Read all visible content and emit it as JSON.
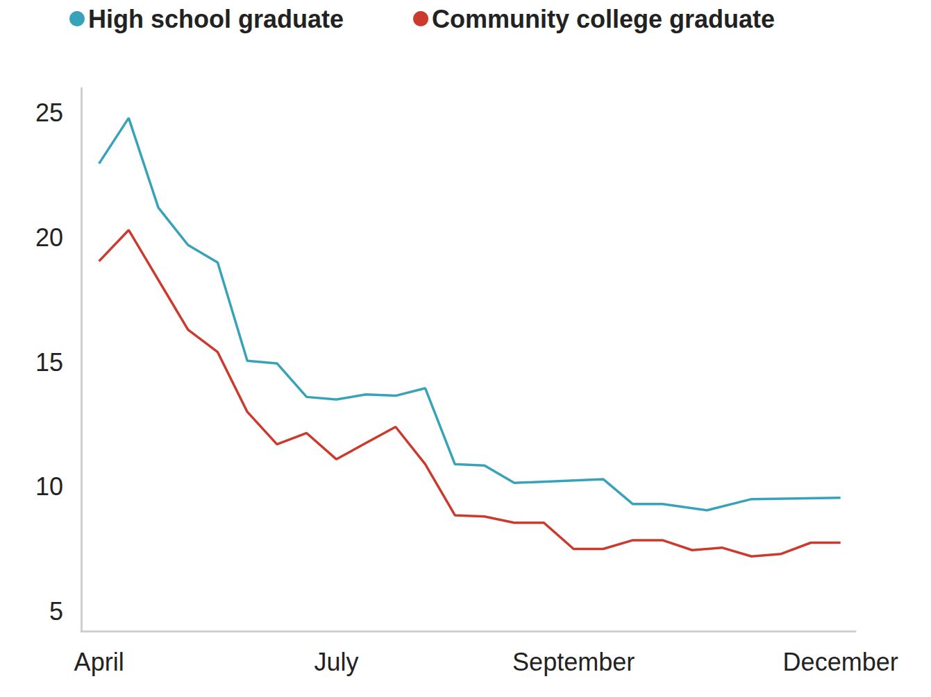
{
  "chart_data": {
    "type": "line",
    "series": [
      {
        "name": "High school graduate",
        "color": "#38a3b8",
        "x": [
          0,
          1,
          2,
          3,
          4,
          5,
          6,
          7,
          8,
          9,
          10,
          11,
          12,
          13,
          14,
          17,
          18,
          19,
          20.5,
          22,
          25
        ],
        "values": [
          22.97,
          24.8,
          21.2,
          19.7,
          19.0,
          15.05,
          14.95,
          13.6,
          13.5,
          13.7,
          13.65,
          13.95,
          10.9,
          10.85,
          10.15,
          10.3,
          9.3,
          9.3,
          9.05,
          9.5,
          9.55
        ]
      },
      {
        "name": "Community college graduate",
        "color": "#cc3a2e",
        "x": [
          0,
          1,
          2,
          3,
          4,
          5,
          6,
          7,
          8,
          9,
          10,
          11,
          12,
          13,
          14,
          15,
          16,
          17,
          18,
          19,
          20,
          21,
          22,
          23,
          24,
          25
        ],
        "values": [
          19.05,
          20.3,
          18.3,
          16.3,
          15.4,
          13.0,
          11.7,
          12.15,
          11.1,
          11.75,
          12.4,
          10.9,
          8.85,
          8.8,
          8.55,
          8.55,
          7.5,
          7.5,
          7.85,
          7.85,
          7.45,
          7.55,
          7.2,
          7.3,
          7.75,
          7.75
        ]
      }
    ],
    "xlim": [
      -0.6,
      25.5
    ],
    "xticks": [
      {
        "value": 0,
        "label": "April"
      },
      {
        "value": 8,
        "label": "July"
      },
      {
        "value": 16,
        "label": "September"
      },
      {
        "value": 25,
        "label": "December"
      }
    ],
    "ylim": [
      4.2,
      26
    ],
    "yticks": [
      5,
      10,
      15,
      20,
      25
    ],
    "grid": false,
    "legend": "top"
  }
}
